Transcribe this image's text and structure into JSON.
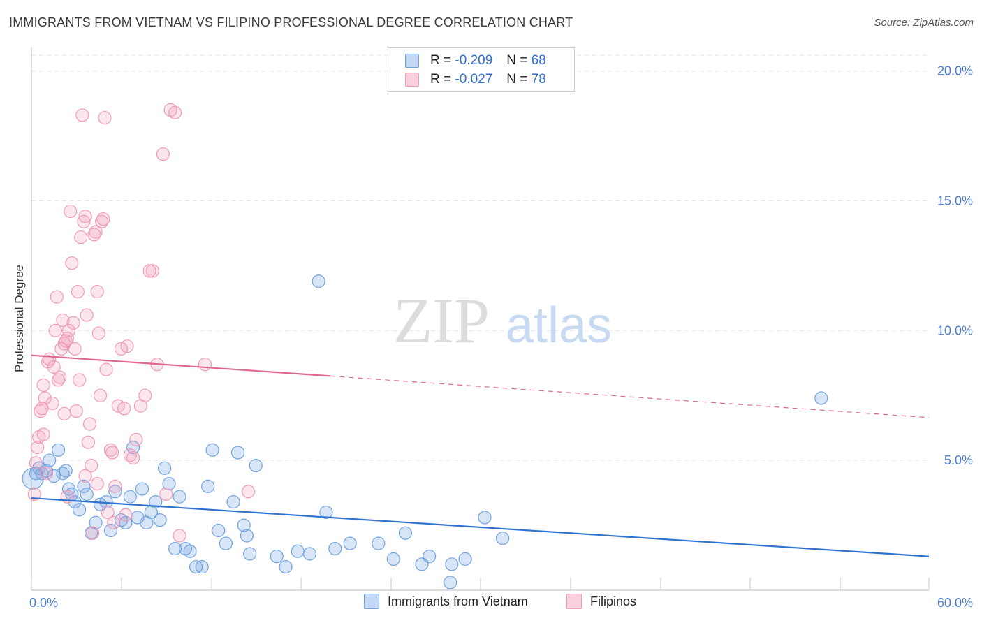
{
  "header": {
    "title": "IMMIGRANTS FROM VIETNAM VS FILIPINO PROFESSIONAL DEGREE CORRELATION CHART",
    "source": "Source: ZipAtlas.com"
  },
  "watermark": {
    "zip": "ZIP",
    "atlas": "atlas"
  },
  "legend": {
    "rows": [
      {
        "r_label": "R =",
        "r_value": "-0.209",
        "n_label": "N =",
        "n_value": "68"
      },
      {
        "r_label": "R =",
        "r_value": "-0.027",
        "n_label": "N =",
        "n_value": "78"
      }
    ]
  },
  "chart_data": {
    "type": "scatter",
    "title": "IMMIGRANTS FROM VIETNAM VS FILIPINO PROFESSIONAL DEGREE CORRELATION CHART",
    "xlabel": "",
    "ylabel": "Professional Degree",
    "xlim": [
      0,
      60
    ],
    "ylim": [
      0,
      20.8
    ],
    "x_tick_labels": [
      "0.0%",
      "60.0%"
    ],
    "y_ticks": [
      5,
      10,
      15,
      20
    ],
    "y_tick_labels": [
      "5.0%",
      "10.0%",
      "15.0%",
      "20.0%"
    ],
    "grid": true,
    "legend_position": "bottom-center",
    "colors": {
      "vietnam": "#6fa3e0",
      "vietnam_line": "#2f73d0",
      "filipinos": "#f19ab6",
      "filipinos_line": "#e06890"
    },
    "series": [
      {
        "name": "Immigrants from Vietnam",
        "trend": {
          "x": [
            0,
            60
          ],
          "y": [
            3.55,
            1.3
          ],
          "dashed_from": null
        },
        "points": [
          [
            0.3,
            4.5
          ],
          [
            0.5,
            4.7
          ],
          [
            0.7,
            4.5
          ],
          [
            1.0,
            4.6
          ],
          [
            1.2,
            5.0
          ],
          [
            1.5,
            4.4
          ],
          [
            1.8,
            5.4
          ],
          [
            2.1,
            4.5
          ],
          [
            2.3,
            4.6
          ],
          [
            2.5,
            3.9
          ],
          [
            2.7,
            3.7
          ],
          [
            2.9,
            3.4
          ],
          [
            3.2,
            3.1
          ],
          [
            3.5,
            4.0
          ],
          [
            3.7,
            3.7
          ],
          [
            4.0,
            2.2
          ],
          [
            4.3,
            2.6
          ],
          [
            4.6,
            3.3
          ],
          [
            5.0,
            3.4
          ],
          [
            5.3,
            2.3
          ],
          [
            5.6,
            3.8
          ],
          [
            6.0,
            2.7
          ],
          [
            6.3,
            2.6
          ],
          [
            6.6,
            3.6
          ],
          [
            6.8,
            5.5
          ],
          [
            7.1,
            2.8
          ],
          [
            7.4,
            3.9
          ],
          [
            7.7,
            2.6
          ],
          [
            8.0,
            3.0
          ],
          [
            8.3,
            3.4
          ],
          [
            8.6,
            2.7
          ],
          [
            8.9,
            4.7
          ],
          [
            9.2,
            4.1
          ],
          [
            9.6,
            1.6
          ],
          [
            9.9,
            3.6
          ],
          [
            10.3,
            1.6
          ],
          [
            10.6,
            1.5
          ],
          [
            11.0,
            0.9
          ],
          [
            11.4,
            0.9
          ],
          [
            11.8,
            4.0
          ],
          [
            12.1,
            5.4
          ],
          [
            12.5,
            2.3
          ],
          [
            13.0,
            1.8
          ],
          [
            13.5,
            3.4
          ],
          [
            13.8,
            5.3
          ],
          [
            14.2,
            2.5
          ],
          [
            14.4,
            2.1
          ],
          [
            14.6,
            1.4
          ],
          [
            15.0,
            4.8
          ],
          [
            16.4,
            1.3
          ],
          [
            17.0,
            0.9
          ],
          [
            17.8,
            1.5
          ],
          [
            18.6,
            1.4
          ],
          [
            19.2,
            11.9
          ],
          [
            19.7,
            3.0
          ],
          [
            20.3,
            1.6
          ],
          [
            21.3,
            1.8
          ],
          [
            23.2,
            1.8
          ],
          [
            24.2,
            1.2
          ],
          [
            25.0,
            2.2
          ],
          [
            26.1,
            1.0
          ],
          [
            26.6,
            1.3
          ],
          [
            28.1,
            1.0
          ],
          [
            29.0,
            1.2
          ],
          [
            28.0,
            0.3
          ],
          [
            30.3,
            2.8
          ],
          [
            31.5,
            2.0
          ],
          [
            52.8,
            7.4
          ]
        ]
      },
      {
        "name": "Filipinos",
        "trend": {
          "x": [
            0,
            60
          ],
          "y": [
            9.05,
            6.65
          ],
          "dashed_from": 20.0
        },
        "points": [
          [
            0.2,
            3.7
          ],
          [
            0.3,
            4.9
          ],
          [
            0.4,
            5.5
          ],
          [
            0.5,
            5.9
          ],
          [
            0.6,
            6.9
          ],
          [
            0.7,
            7.0
          ],
          [
            0.8,
            7.9
          ],
          [
            0.9,
            7.4
          ],
          [
            1.1,
            8.8
          ],
          [
            1.2,
            8.9
          ],
          [
            1.4,
            7.2
          ],
          [
            1.5,
            8.6
          ],
          [
            1.6,
            10.0
          ],
          [
            1.7,
            11.3
          ],
          [
            1.8,
            8.1
          ],
          [
            2.0,
            9.3
          ],
          [
            2.1,
            10.4
          ],
          [
            2.2,
            9.5
          ],
          [
            2.3,
            9.6
          ],
          [
            2.4,
            9.7
          ],
          [
            2.5,
            10.0
          ],
          [
            2.6,
            14.6
          ],
          [
            2.7,
            12.6
          ],
          [
            2.8,
            10.3
          ],
          [
            2.9,
            9.3
          ],
          [
            3.0,
            6.9
          ],
          [
            3.1,
            11.5
          ],
          [
            3.2,
            8.1
          ],
          [
            3.3,
            13.6
          ],
          [
            3.4,
            18.3
          ],
          [
            3.5,
            14.2
          ],
          [
            3.6,
            14.4
          ],
          [
            3.7,
            10.6
          ],
          [
            3.8,
            5.7
          ],
          [
            3.9,
            6.4
          ],
          [
            4.0,
            4.8
          ],
          [
            4.1,
            2.2
          ],
          [
            4.2,
            13.7
          ],
          [
            4.3,
            13.8
          ],
          [
            4.4,
            11.5
          ],
          [
            4.5,
            9.9
          ],
          [
            4.6,
            7.5
          ],
          [
            4.7,
            14.2
          ],
          [
            4.8,
            14.3
          ],
          [
            4.9,
            18.2
          ],
          [
            5.0,
            8.5
          ],
          [
            5.1,
            3.0
          ],
          [
            5.3,
            5.4
          ],
          [
            5.4,
            5.3
          ],
          [
            5.6,
            4.0
          ],
          [
            5.8,
            7.1
          ],
          [
            6.0,
            9.3
          ],
          [
            6.2,
            7.0
          ],
          [
            6.4,
            9.4
          ],
          [
            6.6,
            5.2
          ],
          [
            6.8,
            5.1
          ],
          [
            7.0,
            5.8
          ],
          [
            7.3,
            7.1
          ],
          [
            7.6,
            7.5
          ],
          [
            7.9,
            12.3
          ],
          [
            8.1,
            12.3
          ],
          [
            8.4,
            8.7
          ],
          [
            8.8,
            16.8
          ],
          [
            9.0,
            3.7
          ],
          [
            9.3,
            18.5
          ],
          [
            9.6,
            18.4
          ],
          [
            9.9,
            2.1
          ],
          [
            14.5,
            3.8
          ],
          [
            11.6,
            8.7
          ],
          [
            2.2,
            6.8
          ],
          [
            1.0,
            4.5
          ],
          [
            2.4,
            3.6
          ],
          [
            3.6,
            4.4
          ],
          [
            5.5,
            2.6
          ],
          [
            6.3,
            2.9
          ],
          [
            1.9,
            8.2
          ],
          [
            0.8,
            6.0
          ],
          [
            4.4,
            4.1
          ]
        ]
      }
    ]
  }
}
